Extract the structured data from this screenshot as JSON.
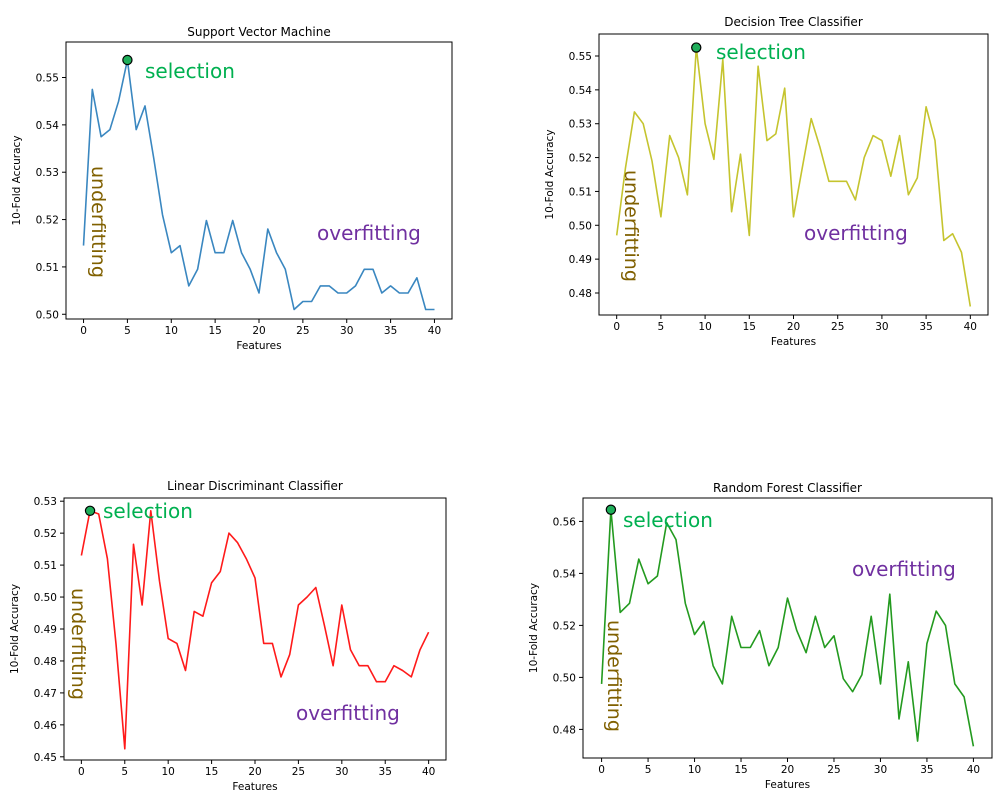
{
  "colors": {
    "selection": "#00b050",
    "underfitting": "#806000",
    "overfitting": "#7030a0",
    "marker_fill": "#1fae5a"
  },
  "chart_data": [
    {
      "type": "line",
      "title": "Support Vector Machine",
      "xlabel": "Features",
      "ylabel": "10-Fold Accuracy",
      "xlim": [
        -2,
        42
      ],
      "ylim": [
        0.499,
        0.5575
      ],
      "xticks": [
        0,
        5,
        10,
        15,
        20,
        25,
        30,
        35,
        40
      ],
      "yticks": [
        0.5,
        0.51,
        0.52,
        0.53,
        0.54,
        0.55
      ],
      "ytick_labels": [
        "0.50",
        "0.51",
        "0.52",
        "0.53",
        "0.54",
        "0.55"
      ],
      "xtick_labels": [
        "0",
        "5",
        "10",
        "15",
        "20",
        "25",
        "30",
        "35",
        "40"
      ],
      "color": "#3a87c0",
      "series": [
        {
          "x": [
            0,
            1,
            2,
            3,
            4,
            5,
            6,
            7,
            8,
            9,
            10,
            11,
            12,
            13,
            14,
            15,
            16,
            17,
            18,
            19,
            20,
            21,
            22,
            23,
            24,
            25,
            26,
            27,
            28,
            29,
            30,
            31,
            32,
            33,
            34,
            35,
            36,
            37,
            38,
            39,
            40
          ],
          "y": [
            0.5145,
            0.5475,
            0.5375,
            0.539,
            0.545,
            0.5537,
            0.539,
            0.544,
            0.533,
            0.521,
            0.513,
            0.5145,
            0.506,
            0.5095,
            0.5198,
            0.513,
            0.513,
            0.5198,
            0.513,
            0.5095,
            0.5045,
            0.518,
            0.513,
            0.5095,
            0.501,
            0.5027,
            0.5027,
            0.506,
            0.506,
            0.5045,
            0.5045,
            0.506,
            0.5095,
            0.5095,
            0.5045,
            0.506,
            0.5045,
            0.5045,
            0.5077,
            0.501,
            0.501
          ]
        }
      ],
      "selection_point": {
        "x": 5,
        "y": 0.5537
      },
      "annotations": [
        {
          "role": "selection",
          "text": "selection"
        },
        {
          "role": "underfitting",
          "text": "underfitting"
        },
        {
          "role": "overfitting",
          "text": "overfitting"
        }
      ]
    },
    {
      "type": "line",
      "title": "Decision Tree Classifier",
      "xlabel": "Features",
      "ylabel": "10-Fold Accuracy",
      "xlim": [
        -2,
        42
      ],
      "ylim": [
        0.4735,
        0.5565
      ],
      "xticks": [
        0,
        5,
        10,
        15,
        20,
        25,
        30,
        35,
        40
      ],
      "yticks": [
        0.48,
        0.49,
        0.5,
        0.51,
        0.52,
        0.53,
        0.54,
        0.55
      ],
      "ytick_labels": [
        "0.48",
        "0.49",
        "0.50",
        "0.51",
        "0.52",
        "0.53",
        "0.54",
        "0.55"
      ],
      "xtick_labels": [
        "0",
        "5",
        "10",
        "15",
        "20",
        "25",
        "30",
        "35",
        "40"
      ],
      "color": "#c5c42e",
      "series": [
        {
          "x": [
            0,
            1,
            2,
            3,
            4,
            5,
            6,
            7,
            8,
            9,
            10,
            11,
            12,
            13,
            14,
            15,
            16,
            17,
            18,
            19,
            20,
            21,
            22,
            23,
            24,
            25,
            26,
            27,
            28,
            29,
            30,
            31,
            32,
            33,
            34,
            35,
            36,
            37,
            38,
            39,
            40
          ],
          "y": [
            0.497,
            0.517,
            0.5335,
            0.53,
            0.519,
            0.5025,
            0.5265,
            0.52,
            0.509,
            0.5525,
            0.53,
            0.5195,
            0.549,
            0.504,
            0.521,
            0.497,
            0.547,
            0.525,
            0.527,
            0.5405,
            0.5025,
            0.517,
            0.5315,
            0.523,
            0.513,
            0.513,
            0.513,
            0.5075,
            0.52,
            0.5265,
            0.525,
            0.5145,
            0.5265,
            0.509,
            0.514,
            0.535,
            0.525,
            0.4955,
            0.4975,
            0.492,
            0.476
          ]
        }
      ],
      "selection_point": {
        "x": 9,
        "y": 0.5525
      },
      "annotations": [
        {
          "role": "selection",
          "text": "selection"
        },
        {
          "role": "underfitting",
          "text": "underfitting"
        },
        {
          "role": "overfitting",
          "text": "overfitting"
        }
      ]
    },
    {
      "type": "line",
      "title": "Linear Discriminant Classifier",
      "xlabel": "Features",
      "ylabel": "10-Fold Accuracy",
      "xlim": [
        -2,
        42
      ],
      "ylim": [
        0.449,
        0.531
      ],
      "xticks": [
        0,
        5,
        10,
        15,
        20,
        25,
        30,
        35,
        40
      ],
      "yticks": [
        0.45,
        0.46,
        0.47,
        0.48,
        0.49,
        0.5,
        0.51,
        0.52,
        0.53
      ],
      "ytick_labels": [
        "0.45",
        "0.46",
        "0.47",
        "0.48",
        "0.49",
        "0.50",
        "0.51",
        "0.52",
        "0.53"
      ],
      "xtick_labels": [
        "0",
        "5",
        "10",
        "15",
        "20",
        "25",
        "30",
        "35",
        "40"
      ],
      "color": "#ff1a1a",
      "series": [
        {
          "x": [
            0,
            1,
            2,
            3,
            4,
            5,
            6,
            7,
            8,
            9,
            10,
            11,
            12,
            13,
            14,
            15,
            16,
            17,
            18,
            19,
            20,
            21,
            22,
            23,
            24,
            25,
            26,
            27,
            28,
            29,
            30,
            31,
            32,
            33,
            34,
            35,
            36,
            37,
            38,
            39,
            40
          ],
          "y": [
            0.513,
            0.527,
            0.526,
            0.512,
            0.485,
            0.4525,
            0.5165,
            0.4975,
            0.527,
            0.505,
            0.487,
            0.4855,
            0.477,
            0.4955,
            0.494,
            0.5045,
            0.508,
            0.52,
            0.517,
            0.512,
            0.506,
            0.4855,
            0.4855,
            0.475,
            0.482,
            0.4975,
            0.5,
            0.503,
            0.491,
            0.4785,
            0.4975,
            0.4835,
            0.4785,
            0.4785,
            0.4735,
            0.4735,
            0.4785,
            0.477,
            0.475,
            0.4835,
            0.489
          ]
        }
      ],
      "selection_point": {
        "x": 1,
        "y": 0.527
      },
      "annotations": [
        {
          "role": "selection",
          "text": "selection"
        },
        {
          "role": "underfitting",
          "text": "underfitting"
        },
        {
          "role": "overfitting",
          "text": "overfitting"
        }
      ]
    },
    {
      "type": "line",
      "title": "Random Forest Classifier",
      "xlabel": "Features",
      "ylabel": "10-Fold Accuracy",
      "xlim": [
        -2,
        42
      ],
      "ylim": [
        0.469,
        0.569
      ],
      "xticks": [
        0,
        5,
        10,
        15,
        20,
        25,
        30,
        35,
        40
      ],
      "yticks": [
        0.48,
        0.5,
        0.52,
        0.54,
        0.56
      ],
      "ytick_labels": [
        "0.48",
        "0.50",
        "0.52",
        "0.54",
        "0.56"
      ],
      "xtick_labels": [
        "0",
        "5",
        "10",
        "15",
        "20",
        "25",
        "30",
        "35",
        "40"
      ],
      "color": "#239a1f",
      "series": [
        {
          "x": [
            0,
            1,
            2,
            3,
            4,
            5,
            6,
            7,
            8,
            9,
            10,
            11,
            12,
            13,
            14,
            15,
            16,
            17,
            18,
            19,
            20,
            21,
            22,
            23,
            24,
            25,
            26,
            27,
            28,
            29,
            30,
            31,
            32,
            33,
            34,
            35,
            36,
            37,
            38,
            39,
            40
          ],
          "y": [
            0.4975,
            0.5645,
            0.525,
            0.5285,
            0.5455,
            0.536,
            0.539,
            0.5595,
            0.553,
            0.5285,
            0.5165,
            0.5215,
            0.5045,
            0.4975,
            0.5235,
            0.5115,
            0.5115,
            0.518,
            0.5045,
            0.5115,
            0.5305,
            0.518,
            0.5095,
            0.5235,
            0.5115,
            0.516,
            0.4995,
            0.4945,
            0.501,
            0.5235,
            0.4975,
            0.532,
            0.484,
            0.506,
            0.4755,
            0.513,
            0.5255,
            0.52,
            0.4975,
            0.4925,
            0.4735
          ]
        }
      ],
      "selection_point": {
        "x": 1,
        "y": 0.5645
      },
      "annotations": [
        {
          "role": "selection",
          "text": "selection"
        },
        {
          "role": "underfitting",
          "text": "underfitting"
        },
        {
          "role": "overfitting",
          "text": "overfitting"
        }
      ]
    }
  ]
}
